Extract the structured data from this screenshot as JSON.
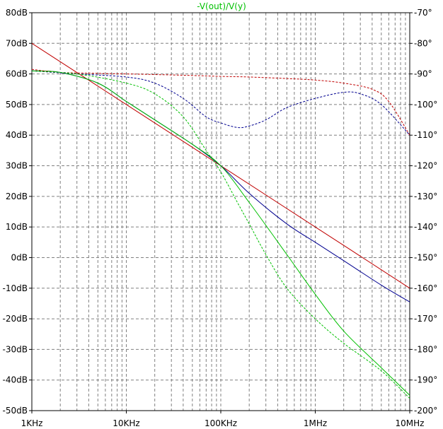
{
  "chart_data": {
    "type": "line",
    "title": "-V(out)/V(y)",
    "title_color": "#00c000",
    "xscale": "log",
    "xlim": [
      1000,
      10000000
    ],
    "x_ticks": [
      {
        "value": 1000,
        "label": "1KHz"
      },
      {
        "value": 10000,
        "label": "10KHz"
      },
      {
        "value": 100000,
        "label": "100KHz"
      },
      {
        "value": 1000000,
        "label": "1MHz"
      },
      {
        "value": 10000000,
        "label": "10MHz"
      }
    ],
    "ylim_left": [
      -50,
      80
    ],
    "y_ticks_left": [
      {
        "value": 80,
        "label": "80dB"
      },
      {
        "value": 70,
        "label": "70dB"
      },
      {
        "value": 60,
        "label": "60dB"
      },
      {
        "value": 50,
        "label": "50dB"
      },
      {
        "value": 40,
        "label": "40dB"
      },
      {
        "value": 30,
        "label": "30dB"
      },
      {
        "value": 20,
        "label": "20dB"
      },
      {
        "value": 10,
        "label": "10dB"
      },
      {
        "value": 0,
        "label": "0dB"
      },
      {
        "value": -10,
        "label": "-10dB"
      },
      {
        "value": -20,
        "label": "-20dB"
      },
      {
        "value": -30,
        "label": "-30dB"
      },
      {
        "value": -40,
        "label": "-40dB"
      },
      {
        "value": -50,
        "label": "-50dB"
      }
    ],
    "ylim_right": [
      -200,
      -70
    ],
    "y_ticks_right": [
      {
        "value": -70,
        "label": "-70°"
      },
      {
        "value": -80,
        "label": "-80°"
      },
      {
        "value": -90,
        "label": "-90°"
      },
      {
        "value": -100,
        "label": "-100°"
      },
      {
        "value": -110,
        "label": "-110°"
      },
      {
        "value": -120,
        "label": "-120°"
      },
      {
        "value": -130,
        "label": "-130°"
      },
      {
        "value": -140,
        "label": "-140°"
      },
      {
        "value": -150,
        "label": "-150°"
      },
      {
        "value": -160,
        "label": "-160°"
      },
      {
        "value": -170,
        "label": "-170°"
      },
      {
        "value": -180,
        "label": "-180°"
      },
      {
        "value": -190,
        "label": "-190°"
      },
      {
        "value": -200,
        "label": "-200°"
      }
    ],
    "grid": true,
    "series": [
      {
        "color": "#c00000",
        "style": "solid",
        "axis": "left",
        "x": [
          1000,
          10000,
          100000,
          1000000,
          10000000
        ],
        "y": [
          70,
          50,
          30,
          10,
          -10
        ]
      },
      {
        "color": "#000090",
        "style": "solid",
        "axis": "left",
        "x": [
          1000,
          2000,
          5000,
          10000,
          20000,
          50000,
          100000,
          200000,
          500000,
          1000000,
          2000000,
          5000000,
          10000000
        ],
        "y": [
          61,
          60.5,
          57,
          51,
          45,
          37,
          30,
          21,
          11,
          5,
          -1,
          -9,
          -14.5
        ]
      },
      {
        "color": "#00c000",
        "style": "solid",
        "axis": "left",
        "x": [
          1000,
          2000,
          5000,
          10000,
          20000,
          50000,
          100000,
          200000,
          500000,
          1000000,
          2000000,
          5000000,
          10000000
        ],
        "y": [
          61,
          60.5,
          57,
          51,
          45,
          37,
          30,
          18,
          1,
          -12,
          -24,
          -36,
          -45
        ]
      },
      {
        "color": "#c00000",
        "style": "dashed",
        "axis": "right",
        "x": [
          1000,
          2000,
          5000,
          10000,
          20000,
          50000,
          100000,
          200000,
          500000,
          1000000,
          2000000,
          4000000,
          6000000,
          10000000
        ],
        "y": [
          -88.5,
          -89.5,
          -89.8,
          -90,
          -90.2,
          -90.5,
          -90.8,
          -91,
          -91.5,
          -92,
          -93,
          -95,
          -99,
          -110
        ]
      },
      {
        "color": "#000090",
        "style": "dashed",
        "axis": "right",
        "x": [
          1000,
          3000,
          10000,
          20000,
          40000,
          70000,
          100000,
          150000,
          200000,
          300000,
          500000,
          1000000,
          2000000,
          3000000,
          5000000,
          10000000
        ],
        "y": [
          -89,
          -90,
          -91,
          -93,
          -98,
          -104,
          -106,
          -107.5,
          -107,
          -105,
          -101,
          -98,
          -96,
          -96.5,
          -100,
          -110
        ]
      },
      {
        "color": "#00c000",
        "style": "dashed",
        "axis": "right",
        "x": [
          1000,
          3000,
          10000,
          20000,
          40000,
          70000,
          100000,
          150000,
          200000,
          300000,
          500000,
          1000000,
          2000000,
          5000000,
          10000000
        ],
        "y": [
          -89,
          -90,
          -93,
          -96.5,
          -104,
          -115,
          -122,
          -132,
          -139,
          -149,
          -160,
          -170,
          -178,
          -187,
          -196
        ]
      }
    ]
  }
}
